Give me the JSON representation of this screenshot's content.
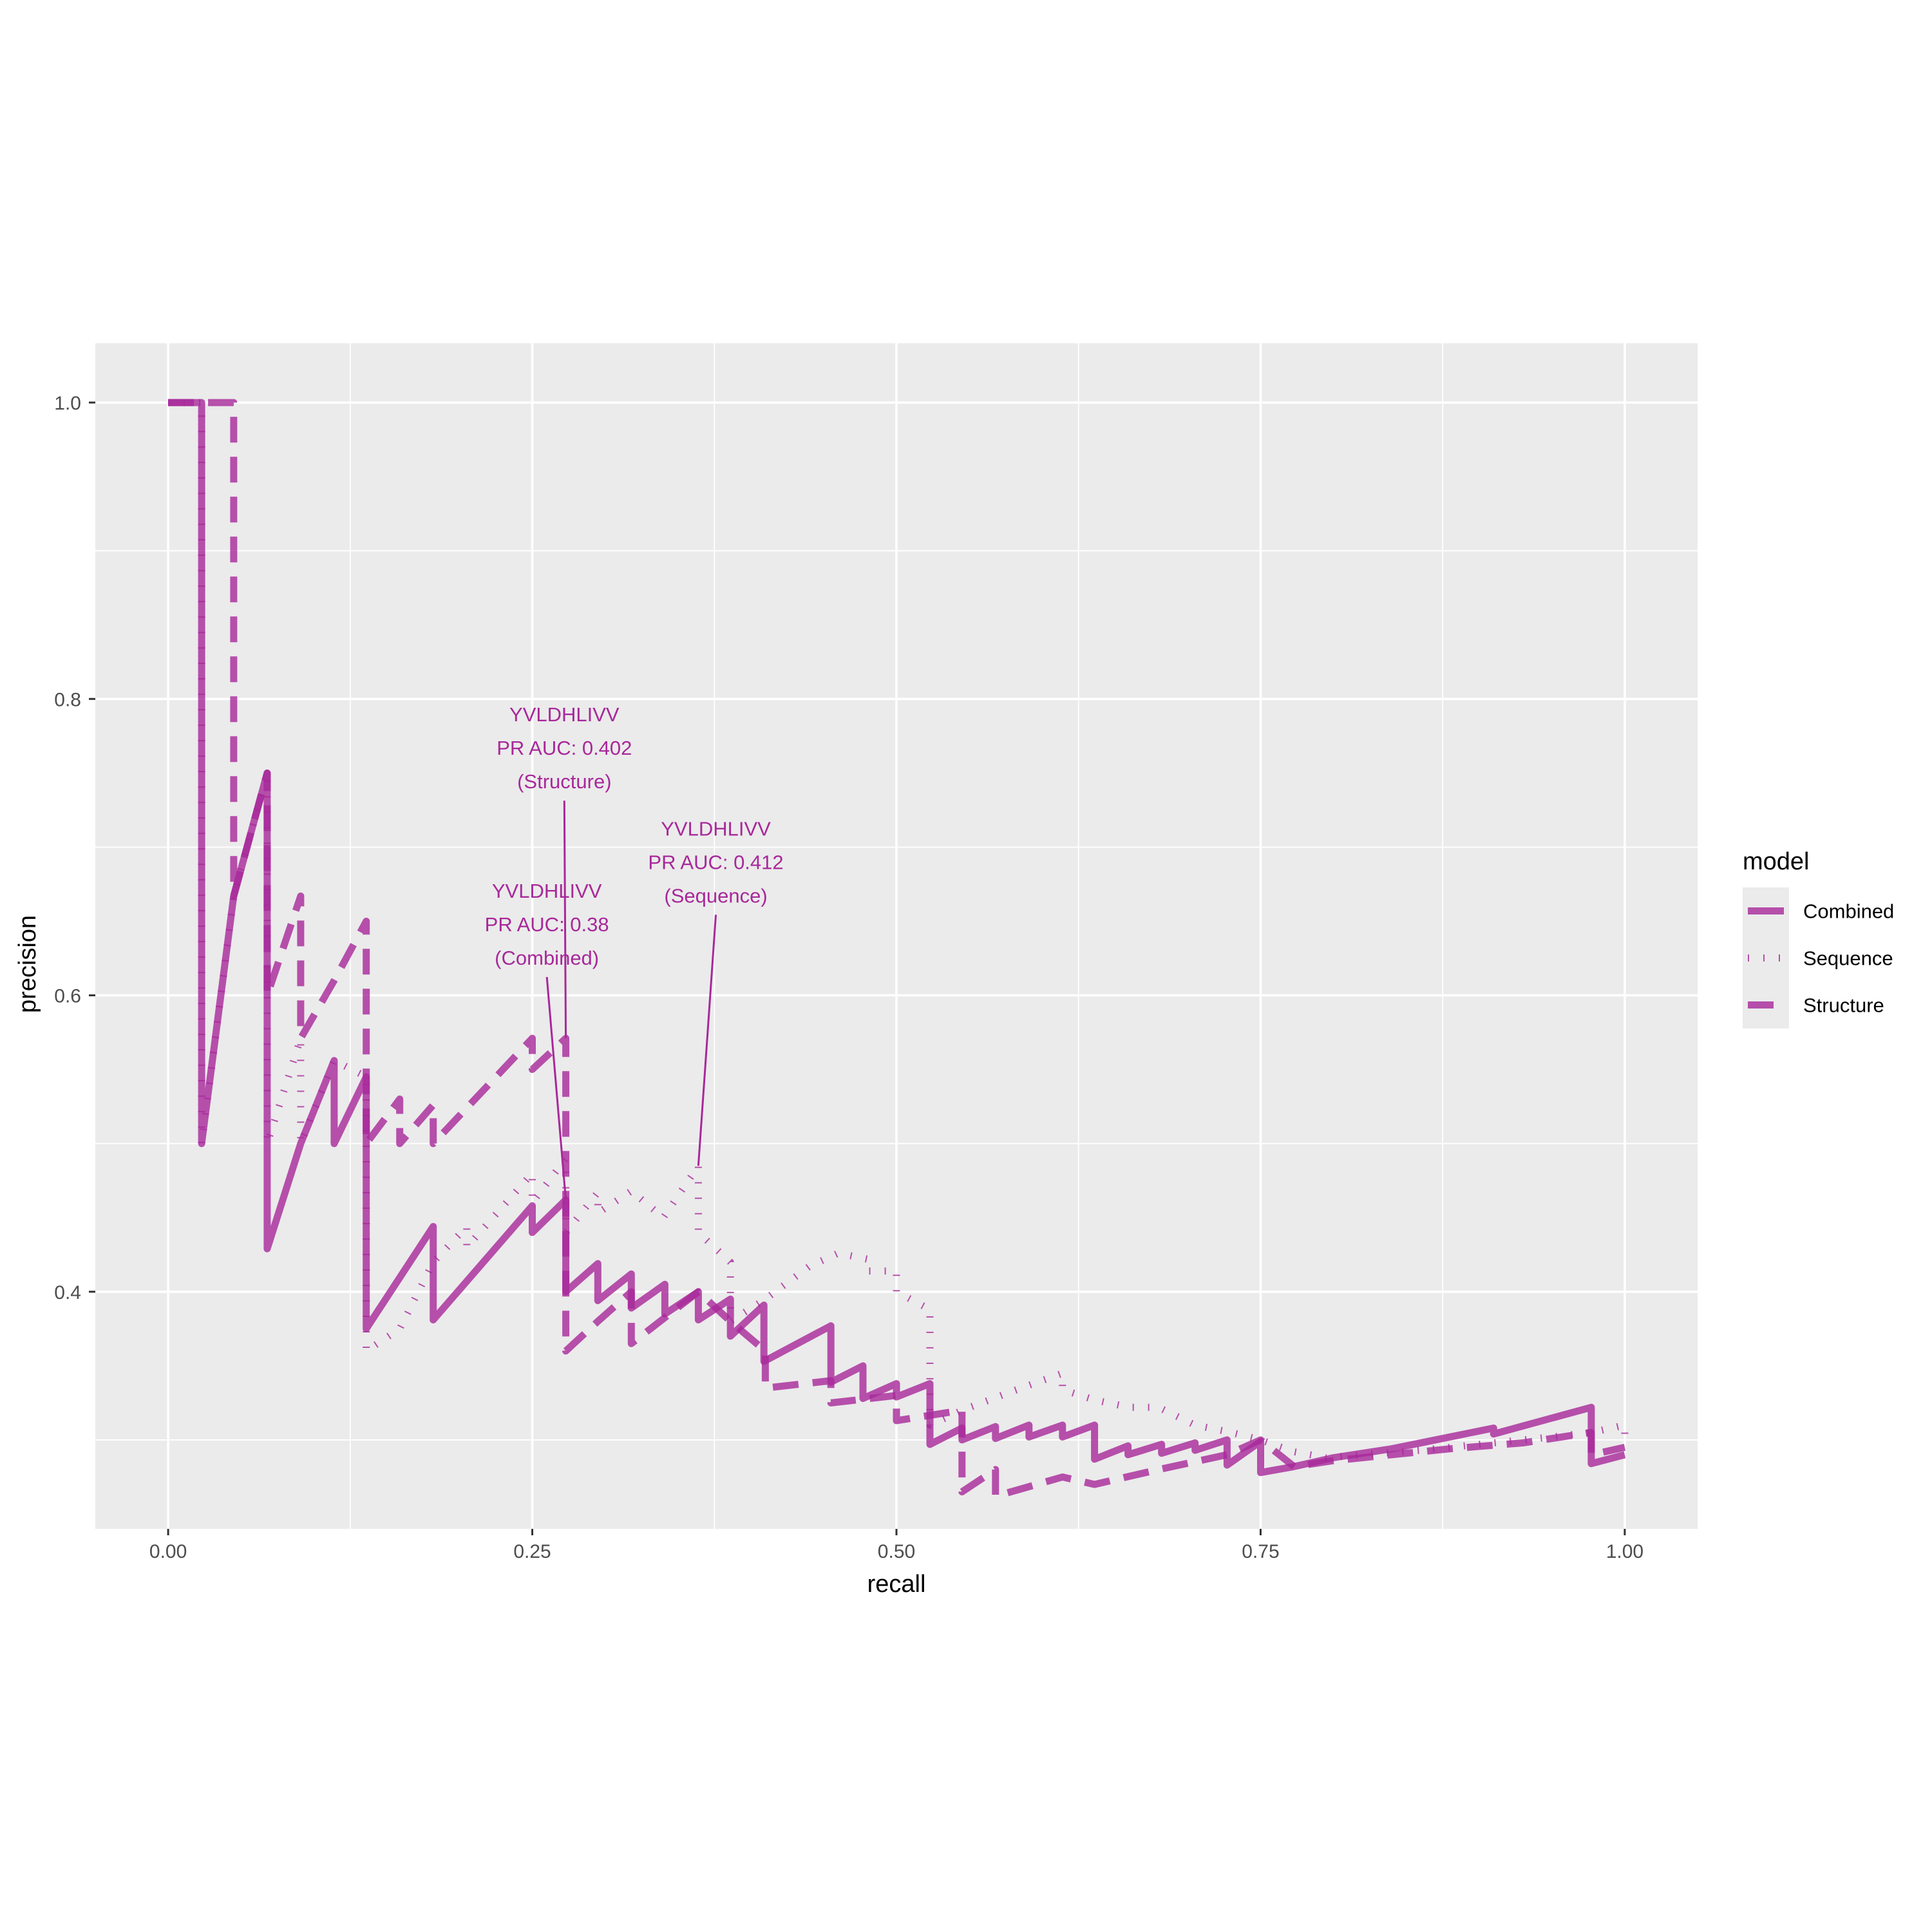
{
  "chart_data": {
    "type": "line",
    "title": "",
    "xlabel": "recall",
    "ylabel": "precision",
    "xlim": [
      -0.05,
      1.05
    ],
    "ylim": [
      0.24,
      1.04
    ],
    "x_ticks": [
      0.0,
      0.25,
      0.5,
      0.75,
      1.0
    ],
    "x_tick_labels": [
      "0.00",
      "0.25",
      "0.50",
      "0.75",
      "1.00"
    ],
    "y_ticks": [
      0.4,
      0.6,
      0.8,
      1.0
    ],
    "y_tick_labels": [
      "0.4",
      "0.6",
      "0.8",
      "1.0"
    ],
    "grid": true,
    "legend": {
      "title": "model",
      "position": "right",
      "entries": [
        "Combined",
        "Sequence",
        "Structure"
      ]
    },
    "line_color": "#A8289A",
    "panel_color": "#EBEBEB",
    "series": [
      {
        "name": "Combined",
        "linetype": "solid",
        "points": [
          [
            0.0,
            1.0
          ],
          [
            0.023,
            1.0
          ],
          [
            0.023,
            0.5
          ],
          [
            0.045,
            0.667
          ],
          [
            0.068,
            0.75
          ],
          [
            0.068,
            0.429
          ],
          [
            0.091,
            0.5
          ],
          [
            0.114,
            0.556
          ],
          [
            0.114,
            0.5
          ],
          [
            0.136,
            0.545
          ],
          [
            0.136,
            0.375
          ],
          [
            0.182,
            0.444
          ],
          [
            0.182,
            0.381
          ],
          [
            0.25,
            0.458
          ],
          [
            0.25,
            0.44
          ],
          [
            0.273,
            0.462
          ],
          [
            0.273,
            0.4
          ],
          [
            0.295,
            0.419
          ],
          [
            0.295,
            0.394
          ],
          [
            0.318,
            0.412
          ],
          [
            0.318,
            0.389
          ],
          [
            0.341,
            0.405
          ],
          [
            0.341,
            0.385
          ],
          [
            0.364,
            0.4
          ],
          [
            0.364,
            0.381
          ],
          [
            0.386,
            0.395
          ],
          [
            0.386,
            0.37
          ],
          [
            0.409,
            0.391
          ],
          [
            0.409,
            0.353
          ],
          [
            0.455,
            0.377
          ],
          [
            0.455,
            0.339
          ],
          [
            0.477,
            0.35
          ],
          [
            0.477,
            0.328
          ],
          [
            0.5,
            0.338
          ],
          [
            0.5,
            0.329
          ],
          [
            0.523,
            0.338
          ],
          [
            0.523,
            0.297
          ],
          [
            0.545,
            0.308
          ],
          [
            0.545,
            0.3
          ],
          [
            0.568,
            0.309
          ],
          [
            0.568,
            0.301
          ],
          [
            0.591,
            0.31
          ],
          [
            0.591,
            0.302
          ],
          [
            0.614,
            0.31
          ],
          [
            0.614,
            0.302
          ],
          [
            0.636,
            0.31
          ],
          [
            0.636,
            0.287
          ],
          [
            0.659,
            0.296
          ],
          [
            0.659,
            0.29
          ],
          [
            0.682,
            0.297
          ],
          [
            0.682,
            0.291
          ],
          [
            0.705,
            0.298
          ],
          [
            0.705,
            0.293
          ],
          [
            0.727,
            0.3
          ],
          [
            0.727,
            0.283
          ],
          [
            0.75,
            0.299
          ],
          [
            0.75,
            0.278
          ],
          [
            0.773,
            0.282
          ],
          [
            0.8,
            0.288
          ],
          [
            0.84,
            0.294
          ],
          [
            0.88,
            0.302
          ],
          [
            0.91,
            0.308
          ],
          [
            0.91,
            0.304
          ],
          [
            0.977,
            0.322
          ],
          [
            0.977,
            0.284
          ],
          [
            1.0,
            0.29
          ]
        ]
      },
      {
        "name": "Sequence",
        "linetype": "dotted",
        "points": [
          [
            0.0,
            1.0
          ],
          [
            0.023,
            1.0
          ],
          [
            0.023,
            0.5
          ],
          [
            0.045,
            0.667
          ],
          [
            0.068,
            0.75
          ],
          [
            0.068,
            0.5
          ],
          [
            0.091,
            0.571
          ],
          [
            0.091,
            0.5
          ],
          [
            0.114,
            0.556
          ],
          [
            0.136,
            0.545
          ],
          [
            0.136,
            0.36
          ],
          [
            0.159,
            0.375
          ],
          [
            0.182,
            0.42
          ],
          [
            0.205,
            0.444
          ],
          [
            0.205,
            0.43
          ],
          [
            0.25,
            0.48
          ],
          [
            0.25,
            0.46
          ],
          [
            0.273,
            0.49
          ],
          [
            0.273,
            0.44
          ],
          [
            0.295,
            0.467
          ],
          [
            0.295,
            0.453
          ],
          [
            0.318,
            0.468
          ],
          [
            0.34,
            0.45
          ],
          [
            0.364,
            0.485
          ],
          [
            0.364,
            0.44
          ],
          [
            0.386,
            0.42
          ],
          [
            0.386,
            0.38
          ],
          [
            0.41,
            0.395
          ],
          [
            0.44,
            0.417
          ],
          [
            0.46,
            0.426
          ],
          [
            0.48,
            0.422
          ],
          [
            0.48,
            0.414
          ],
          [
            0.5,
            0.414
          ],
          [
            0.5,
            0.4
          ],
          [
            0.523,
            0.388
          ],
          [
            0.523,
            0.31
          ],
          [
            0.545,
            0.32
          ],
          [
            0.58,
            0.333
          ],
          [
            0.614,
            0.345
          ],
          [
            0.614,
            0.334
          ],
          [
            0.636,
            0.327
          ],
          [
            0.66,
            0.322
          ],
          [
            0.68,
            0.322
          ],
          [
            0.705,
            0.31
          ],
          [
            0.73,
            0.305
          ],
          [
            0.75,
            0.3
          ],
          [
            0.773,
            0.292
          ],
          [
            0.795,
            0.288
          ],
          [
            0.82,
            0.29
          ],
          [
            0.86,
            0.293
          ],
          [
            0.9,
            0.297
          ],
          [
            0.95,
            0.302
          ],
          [
            0.977,
            0.305
          ],
          [
            1.0,
            0.31
          ],
          [
            1.0,
            0.302
          ]
        ]
      },
      {
        "name": "Structure",
        "linetype": "dashed",
        "points": [
          [
            0.0,
            1.0
          ],
          [
            0.045,
            1.0
          ],
          [
            0.045,
            0.667
          ],
          [
            0.068,
            0.75
          ],
          [
            0.068,
            0.6
          ],
          [
            0.091,
            0.667
          ],
          [
            0.091,
            0.571
          ],
          [
            0.114,
            0.61
          ],
          [
            0.136,
            0.65
          ],
          [
            0.136,
            0.5
          ],
          [
            0.159,
            0.53
          ],
          [
            0.159,
            0.5
          ],
          [
            0.182,
            0.526
          ],
          [
            0.182,
            0.5
          ],
          [
            0.25,
            0.571
          ],
          [
            0.25,
            0.55
          ],
          [
            0.273,
            0.571
          ],
          [
            0.273,
            0.36
          ],
          [
            0.295,
            0.38
          ],
          [
            0.318,
            0.4
          ],
          [
            0.318,
            0.365
          ],
          [
            0.364,
            0.4
          ],
          [
            0.386,
            0.38
          ],
          [
            0.41,
            0.36
          ],
          [
            0.41,
            0.335
          ],
          [
            0.455,
            0.34
          ],
          [
            0.455,
            0.325
          ],
          [
            0.5,
            0.33
          ],
          [
            0.5,
            0.313
          ],
          [
            0.545,
            0.32
          ],
          [
            0.545,
            0.265
          ],
          [
            0.568,
            0.28
          ],
          [
            0.568,
            0.262
          ],
          [
            0.614,
            0.275
          ],
          [
            0.636,
            0.27
          ],
          [
            0.68,
            0.28
          ],
          [
            0.727,
            0.29
          ],
          [
            0.75,
            0.3
          ],
          [
            0.773,
            0.282
          ],
          [
            0.8,
            0.286
          ],
          [
            0.84,
            0.29
          ],
          [
            0.88,
            0.294
          ],
          [
            0.93,
            0.298
          ],
          [
            0.977,
            0.305
          ],
          [
            0.977,
            0.29
          ],
          [
            1.0,
            0.295
          ]
        ]
      }
    ],
    "annotations": [
      {
        "lines": [
          "YVLDHLIVV",
          "PR AUC: 0.402",
          "(Structure)"
        ],
        "text_at": [
          0.272,
          0.767
        ],
        "point": [
          0.273,
          0.571
        ]
      },
      {
        "lines": [
          "YVLDHLIVV",
          "PR AUC: 0.412",
          "(Sequence)"
        ],
        "text_at": [
          0.376,
          0.69
        ],
        "point": [
          0.364,
          0.485
        ]
      },
      {
        "lines": [
          "YVLDHLIVV",
          "PR AUC: 0.38",
          "(Combined)"
        ],
        "text_at": [
          0.26,
          0.648
        ],
        "point": [
          0.273,
          0.462
        ]
      }
    ]
  }
}
